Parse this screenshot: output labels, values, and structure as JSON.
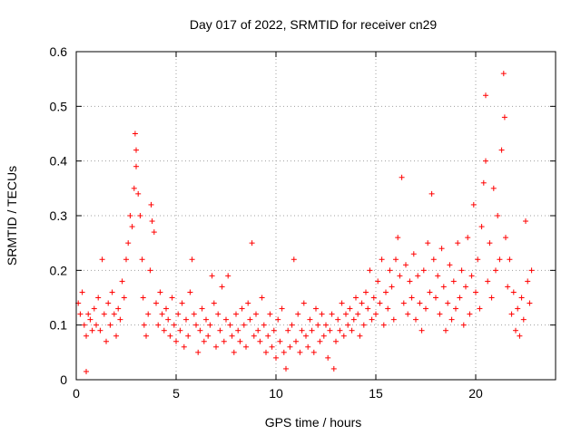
{
  "chart_data": {
    "type": "scatter",
    "title": "Day 017 of 2022, SRMTID for receiver cn29",
    "xlabel": "GPS time / hours",
    "ylabel": "SRMTID / TECUs",
    "xlim": [
      0,
      24
    ],
    "ylim": [
      0,
      0.6
    ],
    "xticks": [
      0,
      5,
      10,
      15,
      20
    ],
    "xtick_labels": [
      "0",
      "5",
      "10",
      "15",
      "20"
    ],
    "yticks": [
      0,
      0.1,
      0.2,
      0.3,
      0.4,
      0.5,
      0.6
    ],
    "ytick_labels": [
      "0",
      "0.1",
      "0.2",
      "0.3",
      "0.4",
      "0.5",
      "0.6"
    ],
    "grid": true,
    "marker": "+",
    "color": "#ff0000",
    "series": [
      {
        "name": "SRMTID",
        "points": [
          [
            0.1,
            0.14
          ],
          [
            0.2,
            0.12
          ],
          [
            0.3,
            0.16
          ],
          [
            0.4,
            0.1
          ],
          [
            0.5,
            0.08
          ],
          [
            0.5,
            0.015
          ],
          [
            0.6,
            0.12
          ],
          [
            0.7,
            0.11
          ],
          [
            0.8,
            0.09
          ],
          [
            0.9,
            0.13
          ],
          [
            1.0,
            0.1
          ],
          [
            1.1,
            0.15
          ],
          [
            1.2,
            0.09
          ],
          [
            1.3,
            0.22
          ],
          [
            1.4,
            0.12
          ],
          [
            1.5,
            0.07
          ],
          [
            1.6,
            0.14
          ],
          [
            1.7,
            0.1
          ],
          [
            1.8,
            0.16
          ],
          [
            1.9,
            0.12
          ],
          [
            2.0,
            0.08
          ],
          [
            2.1,
            0.13
          ],
          [
            2.2,
            0.11
          ],
          [
            2.3,
            0.18
          ],
          [
            2.4,
            0.15
          ],
          [
            2.5,
            0.22
          ],
          [
            2.6,
            0.25
          ],
          [
            2.7,
            0.3
          ],
          [
            2.8,
            0.28
          ],
          [
            2.9,
            0.35
          ],
          [
            2.95,
            0.45
          ],
          [
            3.0,
            0.42
          ],
          [
            3.0,
            0.39
          ],
          [
            3.1,
            0.34
          ],
          [
            3.2,
            0.3
          ],
          [
            3.3,
            0.22
          ],
          [
            3.35,
            0.15
          ],
          [
            3.4,
            0.1
          ],
          [
            3.5,
            0.08
          ],
          [
            3.6,
            0.12
          ],
          [
            3.7,
            0.2
          ],
          [
            3.75,
            0.32
          ],
          [
            3.8,
            0.29
          ],
          [
            3.9,
            0.27
          ],
          [
            4.0,
            0.14
          ],
          [
            4.1,
            0.1
          ],
          [
            4.2,
            0.16
          ],
          [
            4.3,
            0.12
          ],
          [
            4.4,
            0.09
          ],
          [
            4.5,
            0.13
          ],
          [
            4.6,
            0.11
          ],
          [
            4.7,
            0.08
          ],
          [
            4.8,
            0.15
          ],
          [
            4.9,
            0.1
          ],
          [
            5.0,
            0.07
          ],
          [
            5.1,
            0.12
          ],
          [
            5.2,
            0.09
          ],
          [
            5.3,
            0.14
          ],
          [
            5.4,
            0.06
          ],
          [
            5.5,
            0.11
          ],
          [
            5.6,
            0.08
          ],
          [
            5.7,
            0.16
          ],
          [
            5.8,
            0.22
          ],
          [
            5.9,
            0.12
          ],
          [
            6.0,
            0.1
          ],
          [
            6.1,
            0.05
          ],
          [
            6.2,
            0.09
          ],
          [
            6.3,
            0.13
          ],
          [
            6.4,
            0.07
          ],
          [
            6.5,
            0.11
          ],
          [
            6.6,
            0.08
          ],
          [
            6.7,
            0.1
          ],
          [
            6.8,
            0.19
          ],
          [
            6.9,
            0.14
          ],
          [
            7.0,
            0.06
          ],
          [
            7.1,
            0.12
          ],
          [
            7.2,
            0.09
          ],
          [
            7.3,
            0.17
          ],
          [
            7.4,
            0.07
          ],
          [
            7.5,
            0.11
          ],
          [
            7.6,
            0.19
          ],
          [
            7.7,
            0.1
          ],
          [
            7.8,
            0.08
          ],
          [
            7.9,
            0.05
          ],
          [
            8.0,
            0.12
          ],
          [
            8.1,
            0.09
          ],
          [
            8.2,
            0.07
          ],
          [
            8.3,
            0.13
          ],
          [
            8.4,
            0.1
          ],
          [
            8.5,
            0.06
          ],
          [
            8.6,
            0.14
          ],
          [
            8.7,
            0.11
          ],
          [
            8.8,
            0.25
          ],
          [
            8.9,
            0.08
          ],
          [
            9.0,
            0.12
          ],
          [
            9.1,
            0.09
          ],
          [
            9.2,
            0.07
          ],
          [
            9.3,
            0.15
          ],
          [
            9.4,
            0.1
          ],
          [
            9.5,
            0.05
          ],
          [
            9.6,
            0.08
          ],
          [
            9.7,
            0.12
          ],
          [
            9.8,
            0.06
          ],
          [
            9.9,
            0.09
          ],
          [
            10.0,
            0.04
          ],
          [
            10.1,
            0.11
          ],
          [
            10.2,
            0.07
          ],
          [
            10.3,
            0.13
          ],
          [
            10.4,
            0.05
          ],
          [
            10.5,
            0.02
          ],
          [
            10.6,
            0.09
          ],
          [
            10.7,
            0.06
          ],
          [
            10.8,
            0.1
          ],
          [
            10.9,
            0.22
          ],
          [
            11.0,
            0.07
          ],
          [
            11.1,
            0.12
          ],
          [
            11.2,
            0.05
          ],
          [
            11.3,
            0.09
          ],
          [
            11.4,
            0.14
          ],
          [
            11.5,
            0.08
          ],
          [
            11.6,
            0.06
          ],
          [
            11.7,
            0.11
          ],
          [
            11.8,
            0.09
          ],
          [
            11.9,
            0.05
          ],
          [
            12.0,
            0.13
          ],
          [
            12.1,
            0.1
          ],
          [
            12.2,
            0.07
          ],
          [
            12.3,
            0.12
          ],
          [
            12.4,
            0.08
          ],
          [
            12.5,
            0.1
          ],
          [
            12.6,
            0.04
          ],
          [
            12.7,
            0.09
          ],
          [
            12.8,
            0.12
          ],
          [
            12.9,
            0.02
          ],
          [
            13.0,
            0.07
          ],
          [
            13.1,
            0.11
          ],
          [
            13.2,
            0.09
          ],
          [
            13.3,
            0.14
          ],
          [
            13.4,
            0.08
          ],
          [
            13.5,
            0.12
          ],
          [
            13.6,
            0.1
          ],
          [
            13.7,
            0.13
          ],
          [
            13.8,
            0.09
          ],
          [
            13.9,
            0.11
          ],
          [
            14.0,
            0.15
          ],
          [
            14.1,
            0.12
          ],
          [
            14.2,
            0.08
          ],
          [
            14.3,
            0.14
          ],
          [
            14.4,
            0.1
          ],
          [
            14.5,
            0.16
          ],
          [
            14.6,
            0.13
          ],
          [
            14.7,
            0.2
          ],
          [
            14.8,
            0.11
          ],
          [
            14.9,
            0.15
          ],
          [
            15.0,
            0.12
          ],
          [
            15.1,
            0.18
          ],
          [
            15.2,
            0.14
          ],
          [
            15.3,
            0.22
          ],
          [
            15.4,
            0.1
          ],
          [
            15.5,
            0.16
          ],
          [
            15.6,
            0.13
          ],
          [
            15.7,
            0.2
          ],
          [
            15.8,
            0.17
          ],
          [
            15.9,
            0.11
          ],
          [
            16.0,
            0.22
          ],
          [
            16.1,
            0.26
          ],
          [
            16.2,
            0.19
          ],
          [
            16.3,
            0.37
          ],
          [
            16.4,
            0.14
          ],
          [
            16.5,
            0.21
          ],
          [
            16.6,
            0.12
          ],
          [
            16.7,
            0.18
          ],
          [
            16.8,
            0.15
          ],
          [
            16.9,
            0.23
          ],
          [
            17.0,
            0.11
          ],
          [
            17.1,
            0.19
          ],
          [
            17.2,
            0.14
          ],
          [
            17.3,
            0.09
          ],
          [
            17.4,
            0.2
          ],
          [
            17.5,
            0.13
          ],
          [
            17.6,
            0.25
          ],
          [
            17.7,
            0.16
          ],
          [
            17.8,
            0.34
          ],
          [
            17.9,
            0.22
          ],
          [
            18.0,
            0.15
          ],
          [
            18.1,
            0.19
          ],
          [
            18.2,
            0.12
          ],
          [
            18.3,
            0.24
          ],
          [
            18.4,
            0.17
          ],
          [
            18.5,
            0.09
          ],
          [
            18.6,
            0.14
          ],
          [
            18.7,
            0.21
          ],
          [
            18.8,
            0.11
          ],
          [
            18.9,
            0.18
          ],
          [
            19.0,
            0.13
          ],
          [
            19.1,
            0.25
          ],
          [
            19.2,
            0.15
          ],
          [
            19.3,
            0.2
          ],
          [
            19.4,
            0.1
          ],
          [
            19.5,
            0.17
          ],
          [
            19.6,
            0.26
          ],
          [
            19.7,
            0.12
          ],
          [
            19.8,
            0.19
          ],
          [
            19.9,
            0.32
          ],
          [
            20.0,
            0.16
          ],
          [
            20.1,
            0.22
          ],
          [
            20.2,
            0.13
          ],
          [
            20.3,
            0.28
          ],
          [
            20.4,
            0.36
          ],
          [
            20.5,
            0.4
          ],
          [
            20.5,
            0.52
          ],
          [
            20.6,
            0.18
          ],
          [
            20.7,
            0.25
          ],
          [
            20.8,
            0.15
          ],
          [
            20.9,
            0.35
          ],
          [
            21.0,
            0.2
          ],
          [
            21.1,
            0.3
          ],
          [
            21.2,
            0.22
          ],
          [
            21.3,
            0.42
          ],
          [
            21.4,
            0.56
          ],
          [
            21.45,
            0.48
          ],
          [
            21.5,
            0.26
          ],
          [
            21.6,
            0.17
          ],
          [
            21.7,
            0.22
          ],
          [
            21.8,
            0.12
          ],
          [
            21.9,
            0.16
          ],
          [
            22.0,
            0.09
          ],
          [
            22.1,
            0.13
          ],
          [
            22.2,
            0.08
          ],
          [
            22.3,
            0.15
          ],
          [
            22.4,
            0.11
          ],
          [
            22.5,
            0.29
          ],
          [
            22.6,
            0.18
          ],
          [
            22.7,
            0.14
          ],
          [
            22.8,
            0.2
          ]
        ]
      }
    ]
  }
}
